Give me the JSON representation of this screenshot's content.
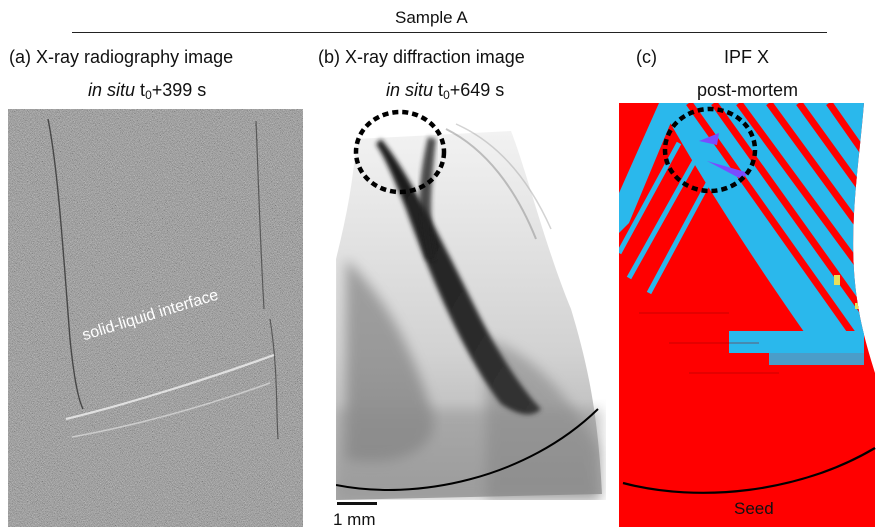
{
  "header": {
    "sample_label": "Sample A"
  },
  "panels": {
    "a": {
      "tag": "(a)",
      "title": "X-ray radiography image",
      "line2_italic": "in situ",
      "line2_t": "t",
      "line2_sub": "0",
      "line2_rest": "+399 s",
      "annotation": "solid-liquid interface"
    },
    "b": {
      "tag": "(b)",
      "title": "X-ray diffraction image",
      "line2_italic": "in situ",
      "line2_t": "t",
      "line2_sub": "0",
      "line2_rest": "+649 s",
      "scale_bar_label": "1 mm"
    },
    "c": {
      "tag": "(c)",
      "title": "IPF X",
      "line2": "post-mortem",
      "seed_label": "Seed"
    }
  },
  "colors": {
    "radiograph_gray": "#8a8a8a",
    "ipf_red": "#ff0000",
    "ipf_cyan": "#2ab8ec",
    "ipf_violet": "#7a4cff",
    "ipf_yellow": "#e8e05a"
  }
}
